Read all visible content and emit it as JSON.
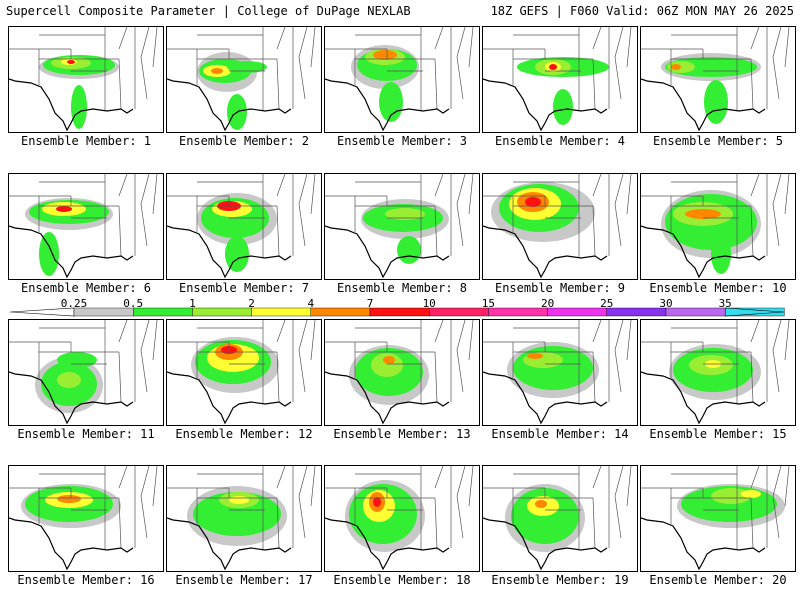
{
  "header": {
    "title_left": "Supercell Composite Parameter | College of DuPage NEXLAB",
    "title_right": "18Z GEFS | F060 Valid: 06Z MON MAY 26 2025"
  },
  "panels": [
    {
      "label": "Ensemble Member: 1"
    },
    {
      "label": "Ensemble Member: 2"
    },
    {
      "label": "Ensemble Member: 3"
    },
    {
      "label": "Ensemble Member: 4"
    },
    {
      "label": "Ensemble Member: 5"
    },
    {
      "label": "Ensemble Member: 6"
    },
    {
      "label": "Ensemble Member: 7"
    },
    {
      "label": "Ensemble Member: 8"
    },
    {
      "label": "Ensemble Member: 9"
    },
    {
      "label": "Ensemble Member: 10"
    },
    {
      "label": "Ensemble Member: 11"
    },
    {
      "label": "Ensemble Member: 12"
    },
    {
      "label": "Ensemble Member: 13"
    },
    {
      "label": "Ensemble Member: 14"
    },
    {
      "label": "Ensemble Member: 15"
    },
    {
      "label": "Ensemble Member: 16"
    },
    {
      "label": "Ensemble Member: 17"
    },
    {
      "label": "Ensemble Member: 18"
    },
    {
      "label": "Ensemble Member: 19"
    },
    {
      "label": "Ensemble Member: 20"
    }
  ],
  "colorbar": {
    "labels": [
      "0.25",
      "0.5",
      "1",
      "2",
      "4",
      "7",
      "10",
      "15",
      "20",
      "25",
      "30",
      "35"
    ],
    "colors": [
      "#c8c8c8",
      "#33ee33",
      "#99ee33",
      "#ffff33",
      "#ff8800",
      "#ff1111",
      "#ff2266",
      "#ff33aa",
      "#ee33ee",
      "#8833ee",
      "#bb66ee",
      "#33ddee"
    ]
  }
}
